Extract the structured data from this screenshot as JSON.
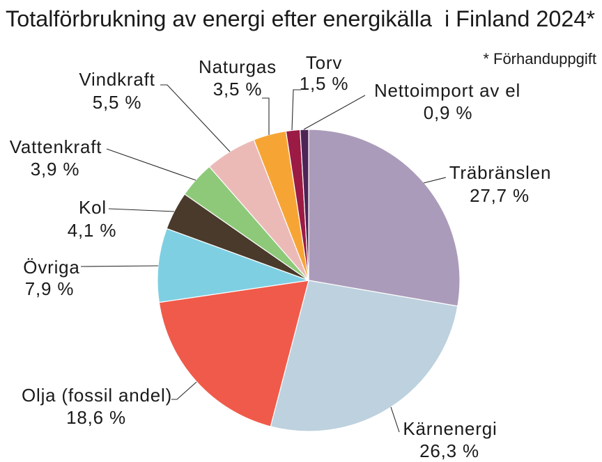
{
  "chart_data": {
    "type": "pie",
    "title": "Totalförbrukning av energi efter energikälla  i Finland 2024*",
    "note": "* Förhanduppgift",
    "unit": "%",
    "direction": "clockwise from top",
    "slices": [
      {
        "label": "Träbränslen",
        "value": 27.7,
        "value_label": "27,7 %",
        "color": "#ab9bba"
      },
      {
        "label": "Kärnenergi",
        "value": 26.3,
        "value_label": "26,3 %",
        "color": "#bdd1de"
      },
      {
        "label": "Olja (fossil andel)",
        "value": 18.6,
        "value_label": "18,6 %",
        "color": "#f05a4a"
      },
      {
        "label": "Övriga",
        "value": 7.9,
        "value_label": "7,9 %",
        "color": "#7fcfe2"
      },
      {
        "label": "Kol",
        "value": 4.1,
        "value_label": "4,1 %",
        "color": "#4a3a2b"
      },
      {
        "label": "Vattenkraft",
        "value": 3.9,
        "value_label": "3,9 %",
        "color": "#8ec97a"
      },
      {
        "label": "Vindkraft",
        "value": 5.5,
        "value_label": "5,5 %",
        "color": "#ebbab7"
      },
      {
        "label": "Naturgas",
        "value": 3.5,
        "value_label": "3,5 %",
        "color": "#f6a535"
      },
      {
        "label": "Torv",
        "value": 1.5,
        "value_label": "1,5 %",
        "color": "#9b1b45"
      },
      {
        "label": "Nettoimport av el",
        "value": 0.9,
        "value_label": "0,9 %",
        "color": "#4e2457"
      }
    ]
  }
}
